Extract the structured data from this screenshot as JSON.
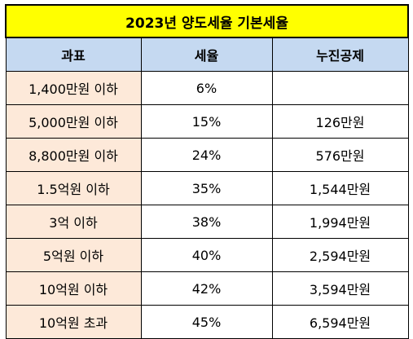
{
  "table": {
    "title": "2023년 양도세율 기본세율",
    "headers": [
      "과표",
      "세율",
      "누진공제"
    ],
    "rows": [
      {
        "bracket": "1,400만원 이하",
        "rate": "6%",
        "deduction": ""
      },
      {
        "bracket": "5,000만원 이하",
        "rate": "15%",
        "deduction": "126만원"
      },
      {
        "bracket": "8,800만원 이하",
        "rate": "24%",
        "deduction": "576만원"
      },
      {
        "bracket": "1.5억원 이하",
        "rate": "35%",
        "deduction": "1,544만원"
      },
      {
        "bracket": "3억 이하",
        "rate": "38%",
        "deduction": "1,994만원"
      },
      {
        "bracket": "5억원 이하",
        "rate": "40%",
        "deduction": "2,594만원"
      },
      {
        "bracket": "10억원 이하",
        "rate": "42%",
        "deduction": "3,594만원"
      },
      {
        "bracket": "10억원 초과",
        "rate": "45%",
        "deduction": "6,594만원"
      }
    ]
  },
  "colors": {
    "title_bg": "#ffff00",
    "header_bg": "#c5d9f1",
    "bracket_bg": "#fde9d9"
  }
}
